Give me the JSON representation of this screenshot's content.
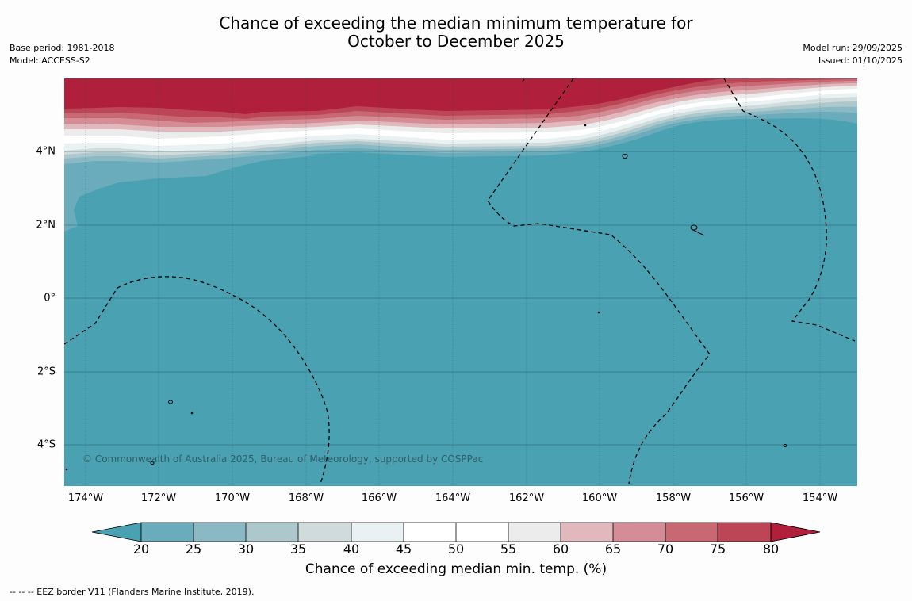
{
  "title": {
    "line1": "Chance of exceeding the median minimum temperature for",
    "line2": "October to December 2025"
  },
  "meta": {
    "base_period": "Base period: 1981-2018",
    "model": "Model: ACCESS-S2",
    "model_run": "Model run: 29/09/2025",
    "issued": "Issued: 01/10/2025"
  },
  "axes": {
    "longitude_ticks": [
      "174°W",
      "172°W",
      "170°W",
      "168°W",
      "166°W",
      "164°W",
      "162°W",
      "160°W",
      "158°W",
      "156°W",
      "154°W"
    ],
    "latitude_ticks": [
      "4°N",
      "2°N",
      "0°",
      "2°S",
      "4°S"
    ]
  },
  "colorbar": {
    "ticks": [
      "20",
      "25",
      "30",
      "35",
      "40",
      "45",
      "50",
      "55",
      "60",
      "65",
      "70",
      "75",
      "80"
    ],
    "label": "Chance of exceeding median min. temp. (%)",
    "colors": {
      "lt20": "#4aa1b2",
      "20-25": "#6aacbb",
      "25-30": "#8ab9c4",
      "30-35": "#acc8cd",
      "35-40": "#d0dbdc",
      "40-45": "#eaf1f2",
      "45-50": "#ffffff",
      "50-55": "#ffffff",
      "55-60": "#ececec",
      "60-65": "#e1b8bc",
      "65-70": "#d48d96",
      "70-75": "#c86873",
      "75-80": "#bc4656",
      "gt80": "#b01f3b"
    }
  },
  "copyright": "© Commonwealth of Australia 2025, Bureau of Meteorology, supported by COSPPac",
  "footnote": "--  --  -- EEZ border V11 (Flanders Marine Institute, 2019)."
}
